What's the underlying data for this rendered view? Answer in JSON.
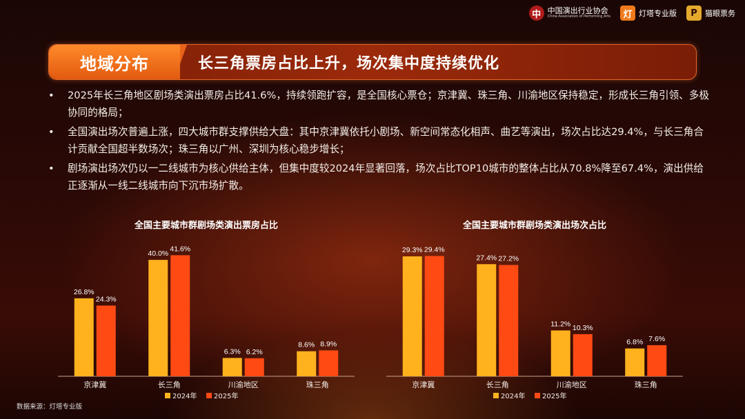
{
  "header": {
    "logos": [
      {
        "mark": "中",
        "name": "中国演出行业协会",
        "sub": "China Association of Performing Arts"
      },
      {
        "mark": "灯",
        "name": "灯塔专业版"
      },
      {
        "mark": "P",
        "name": "猫眼票务"
      }
    ]
  },
  "banner": {
    "tag": "地域分布",
    "title": "长三角票房占比上升，场次集中度持续优化"
  },
  "bullets": [
    "2025年长三角地区剧场类演出票房占比41.6%，持续领跑扩容，是全国核心票仓；京津冀、珠三角、川渝地区保持稳定，形成长三角引领、多极协同的格局；",
    "全国演出场次普遍上涨，四大城市群支撑供给大盘：其中京津冀依托小剧场、新空间常态化相声、曲艺等演出，场次占比达29.4%，与长三角合计贡献全国超半数场次；珠三角以广州、深圳为核心稳步增长；",
    "剧场演出场次仍以一二线城市为核心供给主体，但集中度较2024年显著回落，场次占比TOP10城市的整体占比从70.8%降至67.4%，演出供给正逐渐从一线二线城市向下沉市场扩散。"
  ],
  "colors": {
    "y2024": "#ffb21e",
    "y2025": "#ff4a14"
  },
  "source": "数据来源：灯塔专业版",
  "chart_data": [
    {
      "type": "bar",
      "title": "全国主要城市群剧场类演出票房占比",
      "categories": [
        "京津冀",
        "长三角",
        "川渝地区",
        "珠三角"
      ],
      "series": [
        {
          "name": "2024年",
          "values": [
            26.8,
            40.0,
            6.3,
            8.6
          ],
          "labels": [
            "26.8%",
            "40.0%",
            "6.3%",
            "8.6%"
          ]
        },
        {
          "name": "2025年",
          "values": [
            24.3,
            41.6,
            6.2,
            8.9
          ],
          "labels": [
            "24.3%",
            "41.6%",
            "6.2%",
            "8.9%"
          ]
        }
      ],
      "ylim": [
        0,
        45
      ],
      "legend": "bottom"
    },
    {
      "type": "bar",
      "title": "全国主要城市群剧场类演出场次占比",
      "categories": [
        "京津冀",
        "长三角",
        "川渝地区",
        "珠三角"
      ],
      "series": [
        {
          "name": "2024年",
          "values": [
            29.3,
            27.4,
            11.2,
            6.8
          ],
          "labels": [
            "29.3%",
            "27.4%",
            "11.2%",
            "6.8%"
          ]
        },
        {
          "name": "2025年",
          "values": [
            29.4,
            27.2,
            10.3,
            7.6
          ],
          "labels": [
            "29.4%",
            "27.2%",
            "10.3%",
            "7.6%"
          ]
        }
      ],
      "ylim": [
        0,
        32
      ],
      "legend": "bottom"
    }
  ]
}
